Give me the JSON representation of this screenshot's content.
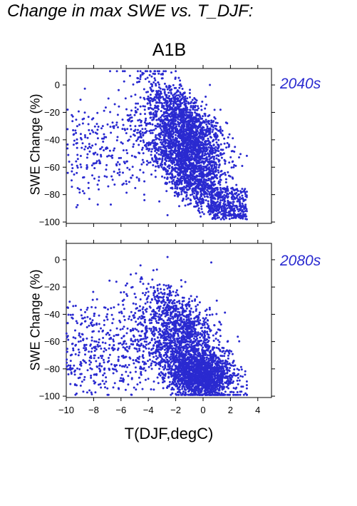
{
  "figure_title": "Change in max SWE vs. T_DJF:",
  "scenario": "A1B",
  "colors": {
    "points": "#2a2ad0",
    "period_label": "#2a2ad0"
  },
  "chart_data": [
    {
      "type": "scatter",
      "period": "2040s",
      "ylabel": "SWE Change (%)",
      "xlabel": "",
      "xlim": [
        -10,
        5
      ],
      "ylim": [
        -101,
        12
      ],
      "xticks": [
        -10,
        -8,
        -6,
        -4,
        -2,
        0,
        2,
        4
      ],
      "yticks": [
        0,
        -20,
        -40,
        -60,
        -80,
        -100
      ],
      "tick_labels_y": [
        "0",
        "−20",
        "−40",
        "−60",
        "−80",
        "−100"
      ],
      "point_cloud": {
        "approx_count": 3500,
        "x_range": [
          -10,
          3.2
        ],
        "y_range": [
          -98,
          10
        ],
        "densest_region": {
          "x": [
            -3,
            1
          ],
          "y": [
            -70,
            -10
          ]
        },
        "trend": "SWE loss increases with warmer T_DJF"
      },
      "sample_points": [
        [
          -9.9,
          -18
        ],
        [
          -9.6,
          -22
        ],
        [
          -9.2,
          -30
        ],
        [
          -8.8,
          -25
        ],
        [
          -8.3,
          -45
        ],
        [
          -8.1,
          -66
        ],
        [
          -7.6,
          -55
        ],
        [
          -7.2,
          -38
        ],
        [
          -6.8,
          -48
        ],
        [
          -6.5,
          -30
        ],
        [
          -6.1,
          -58
        ],
        [
          -5.8,
          -72
        ],
        [
          -5.4,
          -40
        ],
        [
          -5.0,
          -22
        ],
        [
          -4.6,
          -62
        ],
        [
          -4.3,
          -80
        ],
        [
          -3.9,
          -12
        ],
        [
          -3.6,
          -45
        ],
        [
          -3.2,
          -85
        ],
        [
          -2.8,
          -5
        ],
        [
          -2.5,
          -30
        ],
        [
          -2.2,
          -70
        ],
        [
          -2.0,
          10
        ],
        [
          -1.6,
          -50
        ],
        [
          -1.3,
          -88
        ],
        [
          -1.0,
          -20
        ],
        [
          -0.6,
          -60
        ],
        [
          -0.3,
          -92
        ],
        [
          0.0,
          -40
        ],
        [
          0.4,
          -75
        ],
        [
          0.8,
          -95
        ],
        [
          1.2,
          -55
        ],
        [
          1.6,
          -85
        ],
        [
          2.0,
          -92
        ],
        [
          2.4,
          -97
        ],
        [
          2.8,
          -96
        ],
        [
          3.0,
          -90
        ],
        [
          -4.8,
          5
        ],
        [
          -2.6,
          -95
        ],
        [
          0.5,
          0
        ]
      ]
    },
    {
      "type": "scatter",
      "period": "2080s",
      "ylabel": "SWE Change (%)",
      "xlabel": "T(DJF,degC)",
      "xlim": [
        -10,
        5
      ],
      "ylim": [
        -101,
        12
      ],
      "xticks": [
        -10,
        -8,
        -6,
        -4,
        -2,
        0,
        2,
        4
      ],
      "yticks": [
        0,
        -20,
        -40,
        -60,
        -80,
        -100
      ],
      "tick_labels_x": [
        "−10",
        "−8",
        "−6",
        "−4",
        "−2",
        "0",
        "2",
        "4"
      ],
      "tick_labels_y": [
        "0",
        "−20",
        "−40",
        "−60",
        "−80",
        "−100"
      ],
      "point_cloud": {
        "approx_count": 3500,
        "x_range": [
          -10,
          3.2
        ],
        "y_range": [
          -99,
          3
        ],
        "densest_region": {
          "x": [
            -2,
            2
          ],
          "y": [
            -95,
            -70
          ]
        },
        "trend": "SWE loss increases with warmer T_DJF; most points below -60%"
      },
      "sample_points": [
        [
          -9.9,
          -35
        ],
        [
          -9.5,
          -65
        ],
        [
          -9.1,
          -70
        ],
        [
          -8.6,
          -45
        ],
        [
          -8.2,
          -85
        ],
        [
          -7.8,
          -60
        ],
        [
          -7.4,
          -72
        ],
        [
          -7.0,
          -40
        ],
        [
          -6.6,
          -80
        ],
        [
          -6.2,
          -55
        ],
        [
          -5.8,
          -88
        ],
        [
          -5.4,
          -65
        ],
        [
          -5.0,
          -25
        ],
        [
          -4.6,
          -90
        ],
        [
          -4.2,
          -50
        ],
        [
          -3.8,
          -95
        ],
        [
          -3.4,
          -30
        ],
        [
          -3.0,
          -75
        ],
        [
          -2.6,
          2
        ],
        [
          -2.3,
          -60
        ],
        [
          -2.0,
          -92
        ],
        [
          -1.6,
          -15
        ],
        [
          -1.3,
          -80
        ],
        [
          -1.0,
          -45
        ],
        [
          -0.6,
          -96
        ],
        [
          -0.3,
          -70
        ],
        [
          0.0,
          -88
        ],
        [
          0.4,
          -55
        ],
        [
          0.8,
          -94
        ],
        [
          1.2,
          -80
        ],
        [
          1.6,
          -90
        ],
        [
          2.0,
          -97
        ],
        [
          2.4,
          -85
        ],
        [
          2.8,
          -93
        ],
        [
          3.1,
          -98
        ],
        [
          0.6,
          -2
        ],
        [
          -4.9,
          -10
        ],
        [
          1.0,
          -30
        ]
      ]
    }
  ]
}
